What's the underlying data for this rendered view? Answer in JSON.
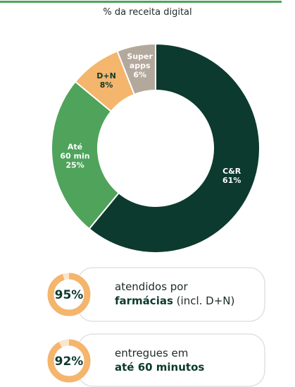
{
  "chart_data": {
    "type": "donut",
    "title": "% da receita digital",
    "categories": [
      "C&R",
      "Até\n60 min",
      "D+N",
      "Super\napps"
    ],
    "values": [
      61,
      25,
      8,
      6
    ],
    "value_labels": [
      "61%",
      "25%",
      "8%",
      "6%"
    ],
    "colors": [
      "#0c3a2e",
      "#4fa35b",
      "#f4b56c",
      "#b3a89c"
    ]
  },
  "kpis": [
    {
      "value": 95,
      "label": "95%",
      "line1": "atendidos por",
      "bold": "farmácias",
      "rest": "(incl. D+N)",
      "color": "#f4b56c"
    },
    {
      "value": 92,
      "label": "92%",
      "line1": "entregues em",
      "bold": "até 60 minutos",
      "rest": null,
      "color": "#f4b56c"
    }
  ]
}
